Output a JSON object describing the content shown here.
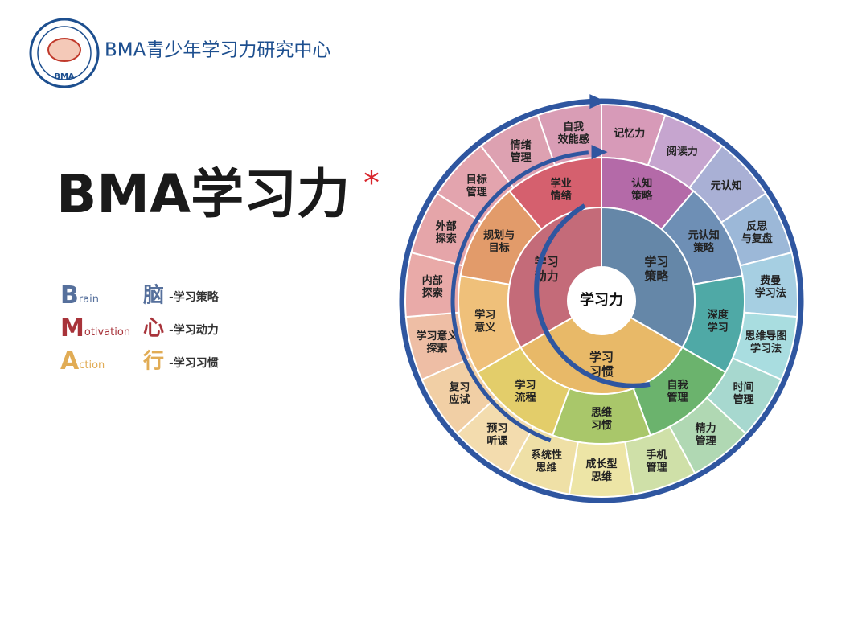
{
  "header": {
    "org": "BMA青少年学习力研究中心",
    "logo": "BMA"
  },
  "title": {
    "text": "BMA学习力",
    "mark": "*"
  },
  "legend": [
    {
      "letter": "B",
      "rest": "rain",
      "char": "脑",
      "desc": "-学习策略"
    },
    {
      "letter": "M",
      "rest": "otivation",
      "char": "心",
      "desc": "-学习动力"
    },
    {
      "letter": "A",
      "rest": "ction",
      "char": "行",
      "desc": "-学习习惯"
    }
  ],
  "wheel": {
    "center": "学习力",
    "inner": [
      [
        "学习",
        "策略"
      ],
      [
        "学习",
        "习惯"
      ],
      [
        "学习",
        "动力"
      ]
    ],
    "middle": [
      [
        "认知",
        "策略"
      ],
      [
        "元认知",
        "策略"
      ],
      [
        "深度",
        "学习"
      ],
      [
        "自我",
        "管理"
      ],
      [
        "思维",
        "习惯"
      ],
      [
        "学习",
        "流程"
      ],
      [
        "学习",
        "意义"
      ],
      [
        "规划与",
        "目标"
      ],
      [
        "学业",
        "情绪"
      ]
    ],
    "outer": [
      [
        "记忆力"
      ],
      [
        "阅读力"
      ],
      [
        "元认知"
      ],
      [
        "反思",
        "与复盘"
      ],
      [
        "费曼",
        "学习法"
      ],
      [
        "思维导图",
        "学习法"
      ],
      [
        "时间",
        "管理"
      ],
      [
        "精力",
        "管理"
      ],
      [
        "手机",
        "管理"
      ],
      [
        "成长型",
        "思维"
      ],
      [
        "系统性",
        "思维"
      ],
      [
        "预习",
        "听课"
      ],
      [
        "复习",
        "应试"
      ],
      [
        "学习意义",
        "探索"
      ],
      [
        "内部",
        "探索"
      ],
      [
        "外部",
        "探索"
      ],
      [
        "目标",
        "管理"
      ],
      [
        "情绪",
        "管理"
      ],
      [
        "自我",
        "效能感"
      ]
    ]
  }
}
